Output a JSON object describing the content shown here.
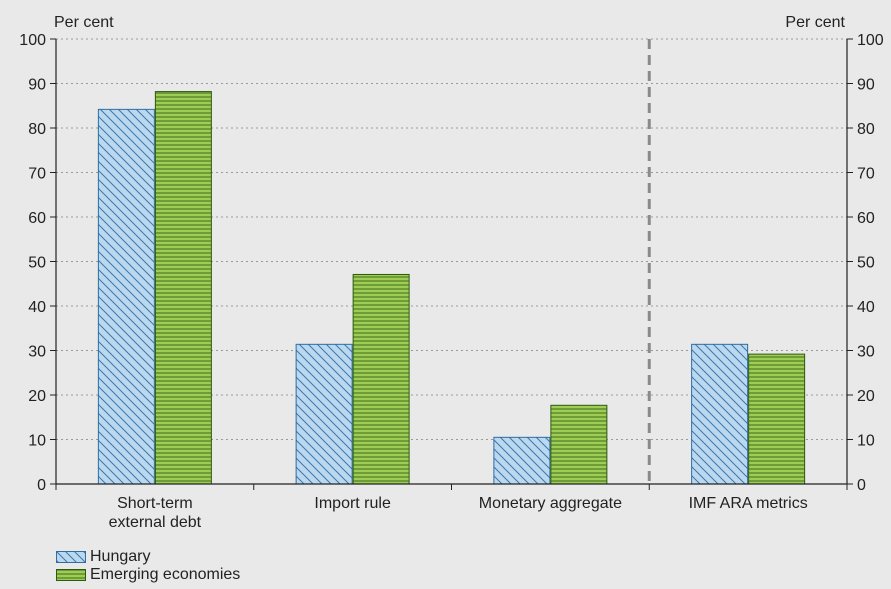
{
  "chart_data": {
    "type": "bar",
    "categories": [
      [
        "Short-term",
        "external debt"
      ],
      [
        "Import rule"
      ],
      [
        "Monetary aggregate"
      ],
      [
        "IMF ARA metrics"
      ]
    ],
    "series": [
      {
        "name": "Hungary",
        "values": [
          84.3,
          31.5,
          10.6,
          31.5
        ],
        "color": "#bcd8ee",
        "hatch": "diagonal",
        "stroke": "#2f6da3"
      },
      {
        "name": "Emerging economies",
        "values": [
          88.3,
          47.2,
          17.8,
          29.3
        ],
        "color": "#8cbf3f",
        "hatch": "horizontal",
        "stroke": "#2d5a12"
      }
    ],
    "ylim": [
      0,
      100
    ],
    "yticks": [
      0,
      10,
      20,
      30,
      40,
      50,
      60,
      70,
      80,
      90,
      100
    ],
    "left_unit": "Per cent",
    "right_unit": "Per cent",
    "grid": true,
    "separator_after_category": 2,
    "legend_position": "bottom-left"
  }
}
